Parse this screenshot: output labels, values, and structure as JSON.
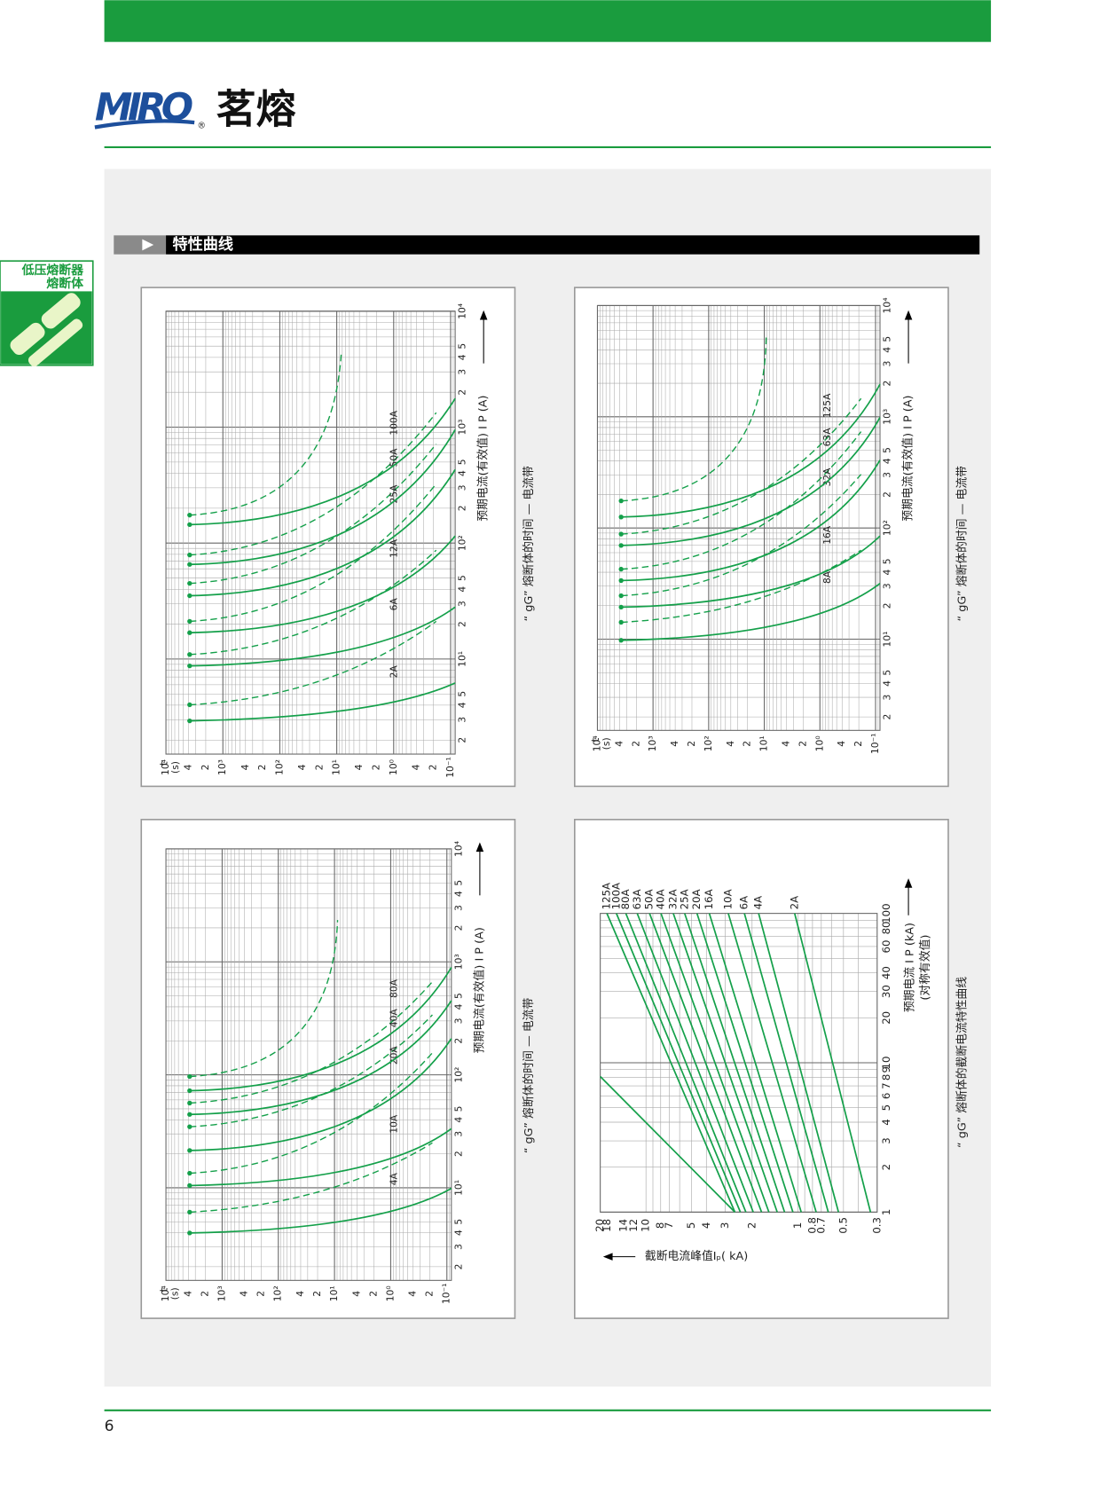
{
  "header": {
    "logo": "MIRO",
    "registered": "®",
    "brand": "茗熔"
  },
  "side_tab": {
    "lines": [
      "低压熔断器",
      "熔断体"
    ]
  },
  "section": {
    "title": "特性曲线"
  },
  "charts": [
    {
      "time_unit": "t",
      "time_unit_paren": "(s)",
      "time_ticks": [
        "10⁴",
        "4",
        "2",
        "10³",
        "4",
        "2",
        "10²",
        "4",
        "2",
        "10¹",
        "4",
        "2",
        "10⁰",
        "4",
        "2",
        "10⁻¹"
      ],
      "current_ticks": [
        "2",
        "3",
        "4",
        "5",
        "10¹",
        "2",
        "3",
        "4",
        "5",
        "10²",
        "2",
        "3",
        "4",
        "5",
        "10³",
        "2",
        "3",
        "4",
        "5",
        "10⁴"
      ],
      "x_label": "预期电流(有效值) I P (A)",
      "caption": "“ gG” 熔断体的时间 — 电流带",
      "curve_labels": [
        "2A",
        "6A",
        "12A",
        "25A",
        "50A",
        "100A"
      ]
    },
    {
      "time_unit": "t",
      "time_unit_paren": "(s)",
      "time_ticks": [
        "10⁴",
        "4",
        "2",
        "10³",
        "4",
        "2",
        "10²",
        "4",
        "2",
        "10¹",
        "4",
        "2",
        "10⁰",
        "4",
        "2",
        "10⁻¹"
      ],
      "current_ticks": [
        "2",
        "3",
        "4",
        "5",
        "10¹",
        "2",
        "3",
        "4",
        "5",
        "10²",
        "2",
        "3",
        "4",
        "5",
        "10³",
        "2",
        "3",
        "4",
        "5",
        "10⁴"
      ],
      "x_label": "预期电流(有效值) I P (A)",
      "caption": "“ gG” 熔断体的时间 — 电流带",
      "curve_labels": [
        "8A",
        "16A",
        "32A",
        "63A",
        "125A"
      ]
    },
    {
      "time_unit": "t",
      "time_unit_paren": "(s)",
      "time_ticks": [
        "10⁴",
        "4",
        "2",
        "10³",
        "4",
        "2",
        "10²",
        "4",
        "2",
        "10¹",
        "4",
        "2",
        "10⁰",
        "4",
        "2",
        "10⁻¹"
      ],
      "current_ticks": [
        "2",
        "3",
        "4",
        "5",
        "10¹",
        "2",
        "3",
        "4",
        "5",
        "10²",
        "2",
        "3",
        "4",
        "5",
        "10³",
        "2",
        "3",
        "4",
        "5",
        "10⁴"
      ],
      "x_label": "预期电流(有效值) I P (A)",
      "caption": "“ gG” 熔断体的时间 — 电流带",
      "curve_labels": [
        "4A",
        "10A",
        "20A",
        "40A",
        "80A"
      ]
    }
  ],
  "cutoff_chart": {
    "ratings": [
      "125A",
      "100A",
      "80A",
      "63A",
      "50A",
      "40A",
      "32A",
      "25A",
      "20A",
      "16A",
      "10A",
      "6A",
      "4A",
      "2A"
    ],
    "prospective_ticks": [
      "1",
      "2",
      "3",
      "4",
      "5",
      "6",
      "7",
      "8",
      "9",
      "10",
      "20",
      "30",
      "40",
      "60",
      "80",
      "100"
    ],
    "cutoff_ticks": [
      "20",
      "18",
      "14",
      "12",
      "10",
      "8",
      "7",
      "5",
      "4",
      "3",
      "2",
      "1",
      "0.8",
      "0.7",
      "0.5",
      "0.3"
    ],
    "x_label": "预期电流 I P (kA)",
    "x_label_note": "(对称有效值)",
    "y_label": "截断电流峰值Iₚ( kA)",
    "caption": "“ gG” 熔断体的截断电流特性曲线"
  },
  "page_number": "6"
}
